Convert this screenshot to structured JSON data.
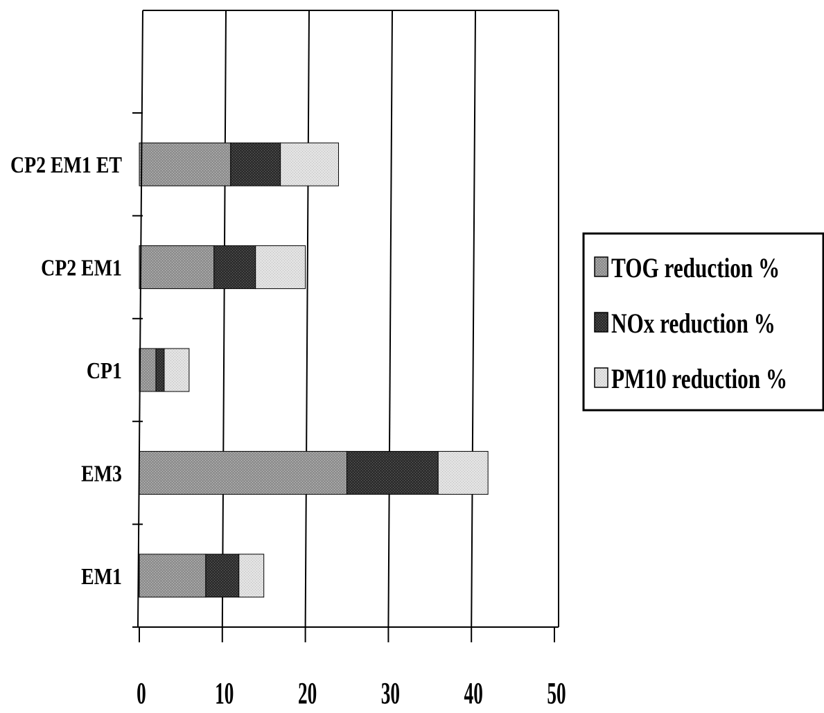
{
  "chart_data": {
    "type": "bar",
    "orientation": "horizontal",
    "stacked": true,
    "title": "",
    "xlabel": "",
    "ylabel": "",
    "categories": [
      "EM1",
      "EM3",
      "CP1",
      "CP2 EM1",
      "CP2 EM1 ET"
    ],
    "x_ticks": [
      "0",
      "10",
      "20",
      "30",
      "40",
      "50"
    ],
    "xlim": [
      0,
      50
    ],
    "grid": "vertical",
    "legend_position": "right",
    "series": [
      {
        "name": "TOG reduction %",
        "values": [
          8,
          25,
          2,
          9,
          11
        ],
        "color": "#9a9a9a"
      },
      {
        "name": "NOx reduction %",
        "values": [
          4,
          11,
          1,
          5,
          6
        ],
        "color": "#3a3a3a"
      },
      {
        "name": "PM10 reduction %",
        "values": [
          3,
          6,
          3,
          6,
          7
        ],
        "color": "#dedede"
      }
    ]
  }
}
